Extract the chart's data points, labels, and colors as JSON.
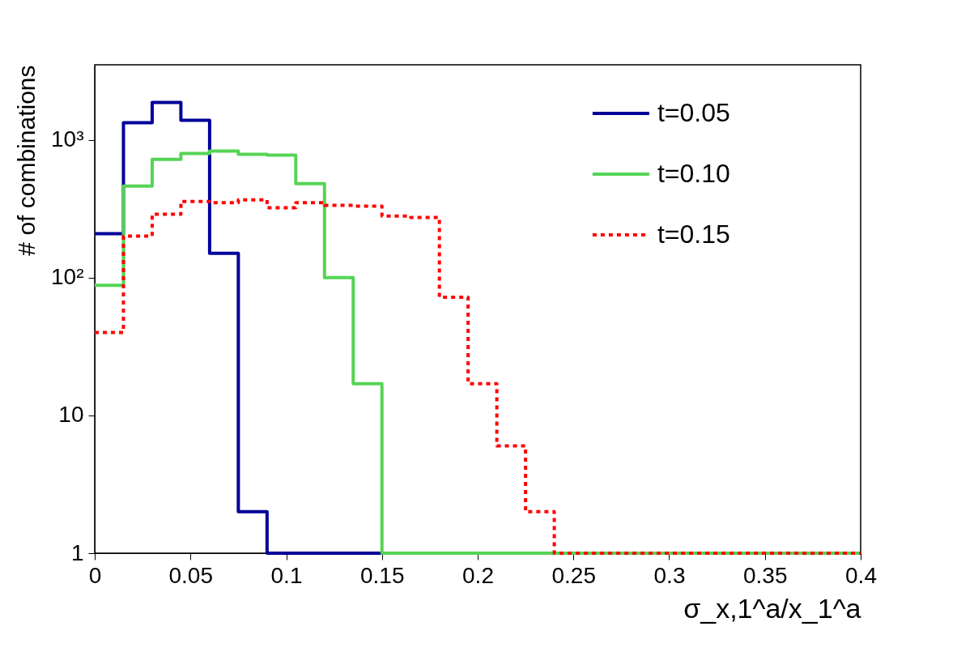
{
  "chart_data": {
    "type": "histogram",
    "xlabel": "σ_x,1^a/x_1^a",
    "ylabel": "# of combinations",
    "bins": [
      0,
      0.015,
      0.03,
      0.045,
      0.06,
      0.075,
      0.09,
      0.105,
      0.12,
      0.135,
      0.15,
      0.165,
      0.18,
      0.195,
      0.21,
      0.225,
      0.24,
      0.255,
      0.27,
      0.285,
      0.3,
      0.315,
      0.33,
      0.345,
      0.36,
      0.375,
      0.39,
      0.4
    ],
    "series": [
      {
        "name": "t=0.05",
        "color": "#000099",
        "line_style": "solid",
        "values": [
          208,
          1330,
          1865,
          1385,
          150,
          2,
          1,
          1,
          1,
          1,
          1,
          1,
          1,
          1,
          1,
          1,
          1,
          1,
          1,
          1,
          1,
          1,
          1,
          1,
          1,
          1,
          1
        ]
      },
      {
        "name": "t=0.10",
        "color": "#55d455",
        "line_style": "solid",
        "values": [
          88,
          462,
          722,
          795,
          828,
          784,
          773,
          481,
          100,
          17,
          1,
          1,
          1,
          1,
          1,
          1,
          1,
          1,
          1,
          1,
          1,
          1,
          1,
          1,
          1,
          1,
          1
        ]
      },
      {
        "name": "t=0.15",
        "color": "#ff0000",
        "line_style": "dotted",
        "values": [
          40,
          200,
          288,
          357,
          350,
          367,
          321,
          350,
          334,
          330,
          280,
          273,
          72,
          17,
          6,
          2,
          1,
          1,
          1,
          1,
          1,
          1,
          1,
          1,
          1,
          1,
          1
        ]
      }
    ],
    "log": "y",
    "xlim": [
      0,
      0.4
    ],
    "ylim": [
      1,
      3500
    ],
    "xticks": [
      0,
      0.05,
      0.1,
      0.15,
      0.2,
      0.25,
      0.3,
      0.35,
      0.4
    ],
    "yticks": [
      {
        "value": 1,
        "label": "1"
      },
      {
        "value": 10,
        "label": "10"
      },
      {
        "value": 100,
        "label": "10²"
      },
      {
        "value": 1000,
        "label": "10³"
      }
    ],
    "grid": false,
    "legend": "top right"
  }
}
